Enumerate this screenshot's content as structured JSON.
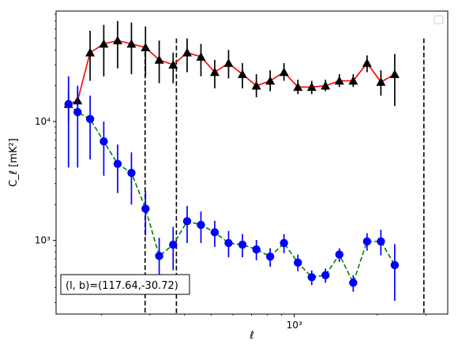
{
  "chart_data": {
    "type": "scatter",
    "title": "",
    "xlabel": "ℓ",
    "ylabel": "C_ℓ  [mK²]",
    "xscale": "log",
    "yscale": "log",
    "xlim": [
      137,
      3600
    ],
    "ylim": [
      240,
      85000
    ],
    "x_ticks": [
      {
        "value": 1000,
        "label": "10³"
      }
    ],
    "y_ticks": [
      {
        "value": 1000,
        "label": "10³"
      },
      {
        "value": 10000,
        "label": "10⁴"
      }
    ],
    "vlines": [
      {
        "x": 288,
        "style": "dashed",
        "y_top": 44000
      },
      {
        "x": 374,
        "style": "dashed",
        "y_top": 50000
      },
      {
        "x": 2950,
        "style": "dashed",
        "y_top": 50000
      }
    ],
    "annotation": "(l, b)=(117.64,-30.72)",
    "legend": {
      "position": "top-right",
      "entries": []
    },
    "series": [
      {
        "marker": "triangle",
        "color": "#000000",
        "line_color": "#ff0000",
        "line_style": "solid",
        "points": [
          {
            "x": 152,
            "y": 14000,
            "err_low": 10000,
            "err_high": 18000
          },
          {
            "x": 164,
            "y": 15000,
            "err_low": 11000,
            "err_high": 19000
          },
          {
            "x": 182,
            "y": 38000,
            "err_low": 22000,
            "err_high": 58000
          },
          {
            "x": 204,
            "y": 45000,
            "err_low": 24000,
            "err_high": 65000
          },
          {
            "x": 229,
            "y": 48000,
            "err_low": 28000,
            "err_high": 70000
          },
          {
            "x": 257,
            "y": 45000,
            "err_low": 25000,
            "err_high": 68000
          },
          {
            "x": 289,
            "y": 42000,
            "err_low": 24000,
            "err_high": 63000
          },
          {
            "x": 324,
            "y": 33000,
            "err_low": 21000,
            "err_high": 48000
          },
          {
            "x": 364,
            "y": 30000,
            "err_low": 21000,
            "err_high": 38000
          },
          {
            "x": 409,
            "y": 38000,
            "err_low": 26000,
            "err_high": 50000
          },
          {
            "x": 459,
            "y": 35000,
            "err_low": 24000,
            "err_high": 45000
          },
          {
            "x": 515,
            "y": 26000,
            "err_low": 19000,
            "err_high": 33000
          },
          {
            "x": 578,
            "y": 31000,
            "err_low": 23000,
            "err_high": 40000
          },
          {
            "x": 649,
            "y": 25000,
            "err_low": 19000,
            "err_high": 31000
          },
          {
            "x": 729,
            "y": 20000,
            "err_low": 16000,
            "err_high": 25000
          },
          {
            "x": 818,
            "y": 22000,
            "err_low": 18000,
            "err_high": 27000
          },
          {
            "x": 918,
            "y": 26000,
            "err_low": 22000,
            "err_high": 31000
          },
          {
            "x": 1031,
            "y": 19500,
            "err_low": 17000,
            "err_high": 22500
          },
          {
            "x": 1157,
            "y": 19500,
            "err_low": 17000,
            "err_high": 22000
          },
          {
            "x": 1298,
            "y": 20000,
            "err_low": 18000,
            "err_high": 22500
          },
          {
            "x": 1457,
            "y": 22000,
            "err_low": 19500,
            "err_high": 25000
          },
          {
            "x": 1636,
            "y": 22000,
            "err_low": 19500,
            "err_high": 25000
          },
          {
            "x": 1836,
            "y": 31000,
            "err_low": 26000,
            "err_high": 36000
          },
          {
            "x": 2061,
            "y": 21500,
            "err_low": 16500,
            "err_high": 27000
          },
          {
            "x": 2313,
            "y": 25000,
            "err_low": 13500,
            "err_high": 37000
          }
        ]
      },
      {
        "marker": "circle",
        "color": "#0000ff",
        "line_color": "#008000",
        "line_style": "dashed",
        "points": [
          {
            "x": 152,
            "y": 14000,
            "err_low": 4100,
            "err_high": 24000
          },
          {
            "x": 164,
            "y": 12000,
            "err_low": 4100,
            "err_high": 20000
          },
          {
            "x": 182,
            "y": 10500,
            "err_low": 4800,
            "err_high": 16500
          },
          {
            "x": 204,
            "y": 6800,
            "err_low": 3500,
            "err_high": 10000
          },
          {
            "x": 229,
            "y": 4400,
            "err_low": 2500,
            "err_high": 6400
          },
          {
            "x": 257,
            "y": 3700,
            "err_low": 2000,
            "err_high": 5500
          },
          {
            "x": 289,
            "y": 1850,
            "err_low": 1100,
            "err_high": 2600
          },
          {
            "x": 324,
            "y": 740,
            "err_low": 450,
            "err_high": 1050
          },
          {
            "x": 364,
            "y": 920,
            "err_low": 560,
            "err_high": 1300
          },
          {
            "x": 409,
            "y": 1450,
            "err_low": 950,
            "err_high": 1950
          },
          {
            "x": 459,
            "y": 1350,
            "err_low": 950,
            "err_high": 1750
          },
          {
            "x": 515,
            "y": 1170,
            "err_low": 880,
            "err_high": 1460
          },
          {
            "x": 578,
            "y": 950,
            "err_low": 720,
            "err_high": 1200
          },
          {
            "x": 649,
            "y": 920,
            "err_low": 720,
            "err_high": 1130
          },
          {
            "x": 729,
            "y": 840,
            "err_low": 680,
            "err_high": 1010
          },
          {
            "x": 818,
            "y": 730,
            "err_low": 600,
            "err_high": 860
          },
          {
            "x": 918,
            "y": 950,
            "err_low": 780,
            "err_high": 1130
          },
          {
            "x": 1031,
            "y": 650,
            "err_low": 550,
            "err_high": 760
          },
          {
            "x": 1157,
            "y": 490,
            "err_low": 420,
            "err_high": 560
          },
          {
            "x": 1298,
            "y": 510,
            "err_low": 440,
            "err_high": 580
          },
          {
            "x": 1457,
            "y": 760,
            "err_low": 660,
            "err_high": 860
          },
          {
            "x": 1636,
            "y": 440,
            "err_low": 370,
            "err_high": 510
          },
          {
            "x": 1836,
            "y": 980,
            "err_low": 820,
            "err_high": 1150
          },
          {
            "x": 2061,
            "y": 980,
            "err_low": 750,
            "err_high": 1230
          },
          {
            "x": 2313,
            "y": 620,
            "err_low": 310,
            "err_high": 930
          }
        ]
      }
    ]
  }
}
